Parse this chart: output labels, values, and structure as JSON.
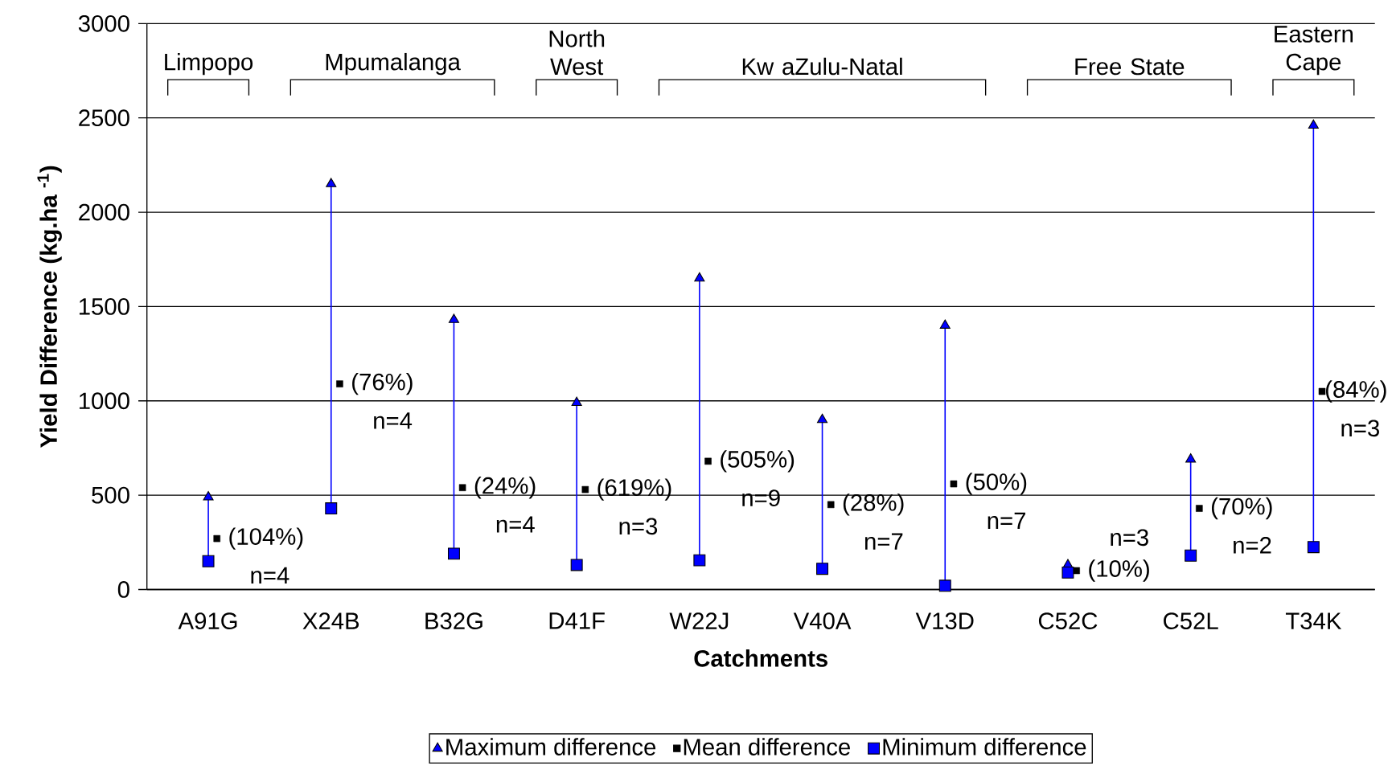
{
  "chart_data": {
    "type": "scatter",
    "xlabel": "Catchments",
    "ylabel": "Yield Difference (kg.ha $^{-1}$)",
    "categories": [
      "A91G",
      "X24B",
      "B32G",
      "D41F",
      "W22J",
      "V40A",
      "V13D",
      "C52C",
      "C52L",
      "T34K"
    ],
    "series": [
      {
        "name": "Maximum difference",
        "color": "#0000ff",
        "marker": "triangle",
        "values": [
          490,
          2150,
          1430,
          990,
          1650,
          900,
          1400,
          130,
          690,
          2460
        ]
      },
      {
        "name": "Mean difference",
        "color": "#000000",
        "marker": "square",
        "values": [
          270,
          1090,
          540,
          530,
          680,
          450,
          560,
          100,
          430,
          1050
        ]
      },
      {
        "name": "Minimum difference",
        "color": "#0000ff",
        "marker": "square",
        "values": [
          150,
          430,
          190,
          130,
          155,
          110,
          20,
          90,
          180,
          225
        ]
      }
    ],
    "ylim": [
      0,
      3000
    ],
    "yticks": [
      0,
      500,
      1000,
      1500,
      2000,
      2500,
      3000
    ],
    "grid": "y",
    "legend": "bottom",
    "annotations": [
      "Limpopo",
      "Mpumalanga",
      "North West",
      "Kw aZulu-Natal",
      "Free State",
      "Eastern Cape",
      "(104%)",
      "n=4",
      "(76%)",
      "n=4",
      "(24%)",
      "n=4",
      "(619%)",
      "n=3",
      "(505%)",
      "n=9",
      "(28%)",
      "n=7",
      "(50%)",
      "n=7",
      "(10%)",
      "n=3",
      "(70%)",
      "n=2",
      "(84%)",
      "n=3"
    ]
  }
}
